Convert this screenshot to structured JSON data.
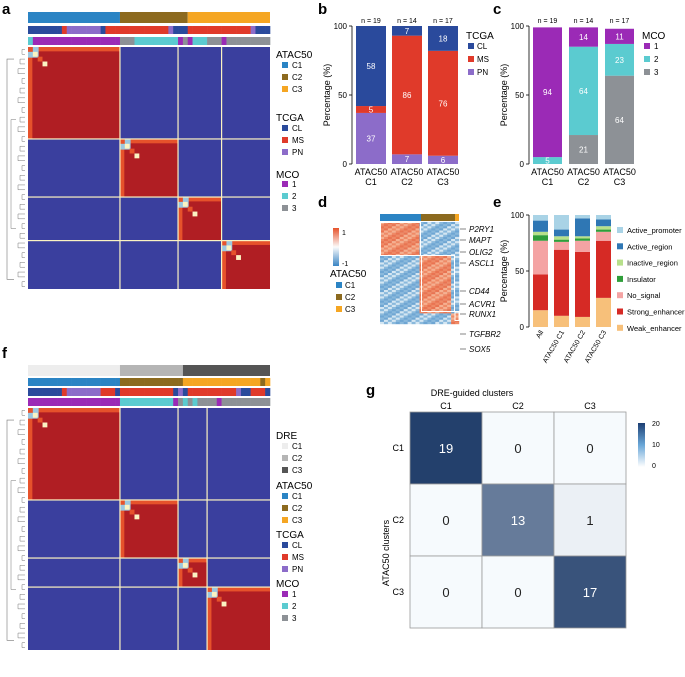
{
  "panel_labels": {
    "a": "a",
    "b": "b",
    "c": "c",
    "d": "d",
    "e": "e",
    "f": "f",
    "g": "g"
  },
  "colors": {
    "atac_c1": "#2b84c4",
    "atac_c2": "#8c6a1f",
    "atac_c3": "#f5a623",
    "tcga_cl": "#2a4a9c",
    "tcga_ms": "#e03a2a",
    "tcga_pn": "#8c6cc9",
    "mco_1": "#9b2ab6",
    "mco_2": "#5bcbd0",
    "mco_3": "#8d9196",
    "dre_c1": "#ededed",
    "dre_c2": "#b5b5b5",
    "dre_c3": "#555555",
    "hm_blue": "#3a3f9e",
    "hm_red": "#b01e23",
    "hm_orange": "#e6522b",
    "hm_light": "#9cc7e0",
    "hm_cream": "#fbf3c2",
    "reg_active_promoter": "#a9d3e6",
    "reg_active_region": "#2f77b4",
    "reg_inactive_region": "#b7e08b",
    "reg_insulator": "#2f9e3a",
    "reg_no_signal": "#f4a3a3",
    "reg_strong_enhancer": "#d62a25",
    "reg_weak_enhancer": "#f7c07a"
  },
  "legend_a": {
    "atac_title": "ATAC50",
    "atac_items": [
      "C1",
      "C2",
      "C3"
    ],
    "tcga_title": "TCGA",
    "tcga_items": [
      "CL",
      "MS",
      "PN"
    ],
    "mco_title": "MCO",
    "mco_items": [
      "1",
      "2",
      "3"
    ]
  },
  "legend_f": {
    "dre_title": "DRE",
    "dre_items": [
      "C1",
      "C2",
      "C3"
    ],
    "atac_title": "ATAC50",
    "atac_items": [
      "C1",
      "C2",
      "C3"
    ],
    "tcga_title": "TCGA",
    "tcga_items": [
      "CL",
      "MS",
      "PN"
    ],
    "mco_title": "MCO",
    "mco_items": [
      "1",
      "2",
      "3"
    ]
  },
  "legend_d": {
    "title": "ATAC50",
    "items": [
      "C1",
      "C2",
      "C3"
    ],
    "scale_max": "1",
    "scale_min": "-1"
  },
  "d_genes": [
    "P2RY1",
    "MAPT",
    "OLIG2",
    "ASCL1",
    "CD44",
    "ACVR1",
    "RUNX1",
    "TGFBR2",
    "SOX5"
  ],
  "chart_data": [
    {
      "id": "b",
      "type": "bar",
      "stacked": true,
      "categories": [
        "ATAC50 C1",
        "ATAC50 C2",
        "ATAC50 C3"
      ],
      "cat_line1": [
        "ATAC50",
        "ATAC50",
        "ATAC50"
      ],
      "cat_line2": [
        "C1",
        "C2",
        "C3"
      ],
      "n_labels": [
        "n = 19",
        "n = 14",
        "n = 17"
      ],
      "series": [
        {
          "name": "PN",
          "values": [
            37,
            7,
            6
          ]
        },
        {
          "name": "MS",
          "values": [
            5,
            86,
            76
          ]
        },
        {
          "name": "CL",
          "values": [
            58,
            7,
            18
          ]
        }
      ],
      "ylabel": "Percentage (%)",
      "yticks": [
        0,
        50,
        100
      ],
      "ylim": [
        0,
        100
      ],
      "legend_title": "TCGA",
      "legend_items": [
        "CL",
        "MS",
        "PN"
      ]
    },
    {
      "id": "c",
      "type": "bar",
      "stacked": true,
      "categories": [
        "ATAC50 C1",
        "ATAC50 C2",
        "ATAC50 C3"
      ],
      "cat_line1": [
        "ATAC50",
        "ATAC50",
        "ATAC50"
      ],
      "cat_line2": [
        "C1",
        "C2",
        "C3"
      ],
      "n_labels": [
        "n = 19",
        "n = 14",
        "n = 17"
      ],
      "series": [
        {
          "name": "3",
          "values": [
            0,
            21,
            64
          ]
        },
        {
          "name": "2",
          "values": [
            5,
            64,
            23
          ]
        },
        {
          "name": "1",
          "values": [
            94,
            14,
            11
          ]
        }
      ],
      "series_labels": [
        [
          "",
          "21",
          "64"
        ],
        [
          "5",
          "64",
          "23"
        ],
        [
          "94",
          "14",
          "11"
        ]
      ],
      "ylabel": "Percentage (%)",
      "yticks": [
        0,
        50,
        100
      ],
      "ylim": [
        0,
        100
      ],
      "legend_title": "MCO",
      "legend_items": [
        "1",
        "2",
        "3"
      ]
    },
    {
      "id": "e",
      "type": "bar",
      "stacked": true,
      "categories": [
        "All",
        "ATAC50 C1",
        "ATAC50 C2",
        "ATAC50 C3"
      ],
      "series": [
        {
          "name": "Weak_enhancer",
          "values": [
            15,
            10,
            9,
            26
          ]
        },
        {
          "name": "Strong_enhancer",
          "values": [
            32,
            59,
            58,
            51
          ]
        },
        {
          "name": "No_signal",
          "values": [
            30,
            7,
            10,
            8
          ]
        },
        {
          "name": "Insulator",
          "values": [
            5,
            2,
            2,
            2
          ]
        },
        {
          "name": "Inactive_region",
          "values": [
            3,
            3,
            2,
            3
          ]
        },
        {
          "name": "Active_region",
          "values": [
            10,
            6,
            16,
            6
          ]
        },
        {
          "name": "Active_promoter",
          "values": [
            5,
            13,
            3,
            4
          ]
        }
      ],
      "ylabel": "Percentage (%)",
      "yticks": [
        0,
        50,
        100
      ],
      "ylim": [
        0,
        100
      ],
      "legend_items": [
        "Active_promoter",
        "Active_region",
        "Inactive_region",
        "Insulator",
        "No_signal",
        "Strong_enhancer",
        "Weak_enhancer"
      ]
    },
    {
      "id": "g",
      "type": "heatmap",
      "title": "DRE-guided clusters",
      "x_categories": [
        "C1",
        "C2",
        "C3"
      ],
      "y_categories": [
        "C1",
        "C2",
        "C3"
      ],
      "ylabel": "ATAC50 clusters",
      "values": [
        [
          19,
          0,
          0
        ],
        [
          0,
          13,
          1
        ],
        [
          0,
          0,
          17
        ]
      ],
      "colorbar_ticks": [
        20,
        10,
        0
      ],
      "vmin": 0,
      "vmax": 20
    }
  ],
  "heatmap_a": {
    "atac_bar": [
      "C1",
      "C2",
      "C3"
    ],
    "atac_counts": [
      19,
      14,
      17
    ],
    "tcga_bar": [
      "CL",
      "CL",
      "CL",
      "CL",
      "CL",
      "CL",
      "CL",
      "MS",
      "PN",
      "PN",
      "PN",
      "PN",
      "PN",
      "PN",
      "PN",
      "CL",
      "MS",
      "MS",
      "MS",
      "MS",
      "MS",
      "MS",
      "MS",
      "MS",
      "MS",
      "MS",
      "MS",
      "MS",
      "MS",
      "PN",
      "CL",
      "CL",
      "CL",
      "MS",
      "MS",
      "MS",
      "MS",
      "MS",
      "MS",
      "MS",
      "MS",
      "MS",
      "MS",
      "MS",
      "MS",
      "MS",
      "PN",
      "CL",
      "CL",
      "CL"
    ],
    "mco_bar": [
      "2",
      "1",
      "1",
      "1",
      "1",
      "1",
      "1",
      "1",
      "1",
      "1",
      "1",
      "1",
      "1",
      "1",
      "1",
      "1",
      "1",
      "1",
      "1",
      "3",
      "3",
      "3",
      "2",
      "2",
      "2",
      "2",
      "2",
      "2",
      "2",
      "2",
      "2",
      "1",
      "3",
      "1",
      "2",
      "2",
      "2",
      "3",
      "3",
      "3",
      "1",
      "3",
      "3",
      "3",
      "3",
      "3",
      "3",
      "3",
      "3",
      "3"
    ],
    "blocks": [
      [
        0,
        19
      ],
      [
        19,
        31
      ],
      [
        31,
        40
      ],
      [
        40,
        50
      ]
    ]
  },
  "heatmap_f": {
    "dre_bar": [
      "C1",
      "C2",
      "C3"
    ],
    "dre_counts": [
      19,
      13,
      18
    ],
    "atac_bar": [
      "C1",
      "C1",
      "C1",
      "C1",
      "C1",
      "C1",
      "C1",
      "C1",
      "C1",
      "C1",
      "C1",
      "C1",
      "C1",
      "C1",
      "C1",
      "C1",
      "C1",
      "C1",
      "C1",
      "C2",
      "C2",
      "C2",
      "C2",
      "C2",
      "C2",
      "C2",
      "C2",
      "C2",
      "C2",
      "C2",
      "C2",
      "C2",
      "C3",
      "C3",
      "C3",
      "C3",
      "C3",
      "C3",
      "C3",
      "C3",
      "C3",
      "C3",
      "C3",
      "C3",
      "C3",
      "C3",
      "C3",
      "C3",
      "C2",
      "C3"
    ],
    "tcga_bar": [
      "CL",
      "CL",
      "CL",
      "CL",
      "CL",
      "CL",
      "CL",
      "MS",
      "PN",
      "PN",
      "PN",
      "PN",
      "PN",
      "PN",
      "PN",
      "MS",
      "MS",
      "MS",
      "CL",
      "MS",
      "MS",
      "MS",
      "MS",
      "MS",
      "MS",
      "MS",
      "MS",
      "MS",
      "MS",
      "MS",
      "CL",
      "PN",
      "CL",
      "MS",
      "MS",
      "MS",
      "MS",
      "MS",
      "MS",
      "MS",
      "MS",
      "MS",
      "MS",
      "PN",
      "CL",
      "CL",
      "MS",
      "MS",
      "MS",
      "CL"
    ],
    "mco_bar": [
      "1",
      "1",
      "1",
      "1",
      "1",
      "1",
      "1",
      "1",
      "1",
      "1",
      "1",
      "1",
      "1",
      "1",
      "1",
      "1",
      "1",
      "1",
      "1",
      "2",
      "2",
      "2",
      "2",
      "2",
      "2",
      "2",
      "2",
      "2",
      "2",
      "2",
      "1",
      "3",
      "2",
      "3",
      "2",
      "3",
      "3",
      "3",
      "3",
      "1",
      "3",
      "3",
      "3",
      "3",
      "3",
      "3",
      "3",
      "3",
      "3",
      "3"
    ],
    "blocks": [
      [
        0,
        19
      ],
      [
        19,
        31
      ],
      [
        31,
        37
      ],
      [
        37,
        50
      ]
    ]
  }
}
